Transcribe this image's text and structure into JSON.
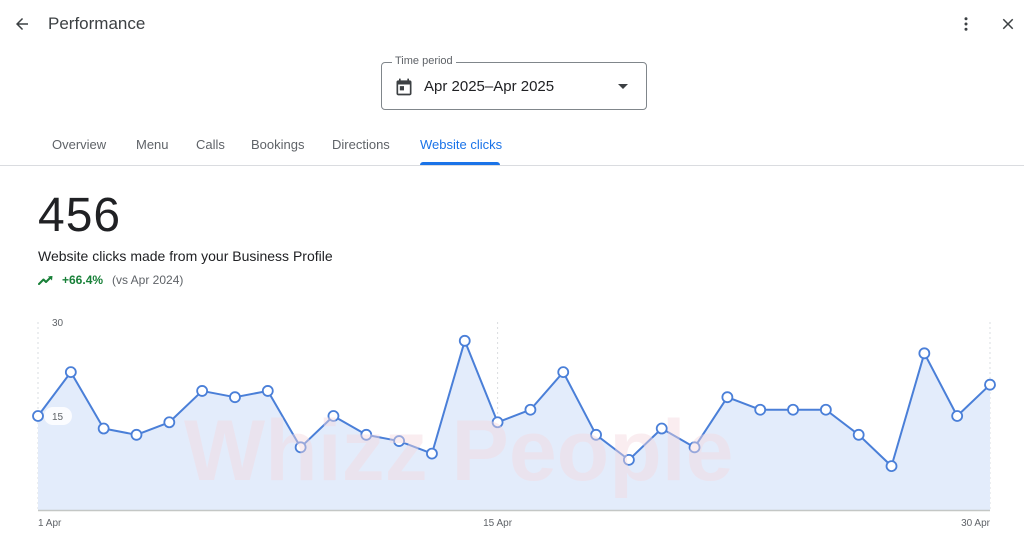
{
  "header": {
    "title": "Performance",
    "back_icon": "arrow-back-icon",
    "more_icon": "more-vert-icon",
    "close_icon": "close-icon"
  },
  "time_period": {
    "label": "Time period",
    "value": "Apr 2025–Apr 2025",
    "icon": "calendar-icon"
  },
  "tabs": [
    {
      "label": "Overview",
      "active": false
    },
    {
      "label": "Menu",
      "active": false
    },
    {
      "label": "Calls",
      "active": false
    },
    {
      "label": "Bookings",
      "active": false
    },
    {
      "label": "Directions",
      "active": false
    },
    {
      "label": "Website clicks",
      "active": true
    }
  ],
  "metric": {
    "value": "456",
    "description": "Website clicks made from your Business Profile",
    "change": "+66.4%",
    "comparison": "(vs Apr 2024)"
  },
  "watermark": "Whizz People",
  "colors": {
    "accent": "#1a73e8",
    "line": "#4a7fd8",
    "area": "#e3ecfb",
    "positive": "#188038"
  },
  "chart_data": {
    "type": "area",
    "x": [
      "1 Apr",
      "2 Apr",
      "3 Apr",
      "4 Apr",
      "5 Apr",
      "6 Apr",
      "7 Apr",
      "8 Apr",
      "9 Apr",
      "10 Apr",
      "11 Apr",
      "12 Apr",
      "13 Apr",
      "14 Apr",
      "15 Apr",
      "16 Apr",
      "17 Apr",
      "18 Apr",
      "19 Apr",
      "20 Apr",
      "21 Apr",
      "22 Apr",
      "23 Apr",
      "24 Apr",
      "25 Apr",
      "26 Apr",
      "27 Apr",
      "28 Apr",
      "29 Apr",
      "30 Apr"
    ],
    "values": [
      15,
      22,
      13,
      12,
      14,
      19,
      18,
      19,
      10,
      15,
      12,
      11,
      9,
      27,
      14,
      16,
      22,
      12,
      8,
      13,
      10,
      18,
      16,
      16,
      16,
      12,
      7,
      25,
      15,
      20
    ],
    "ylim": [
      0,
      30
    ],
    "yticks": [
      "15",
      "30"
    ],
    "xticks": [
      "1 Apr",
      "15 Apr",
      "30 Apr"
    ]
  }
}
